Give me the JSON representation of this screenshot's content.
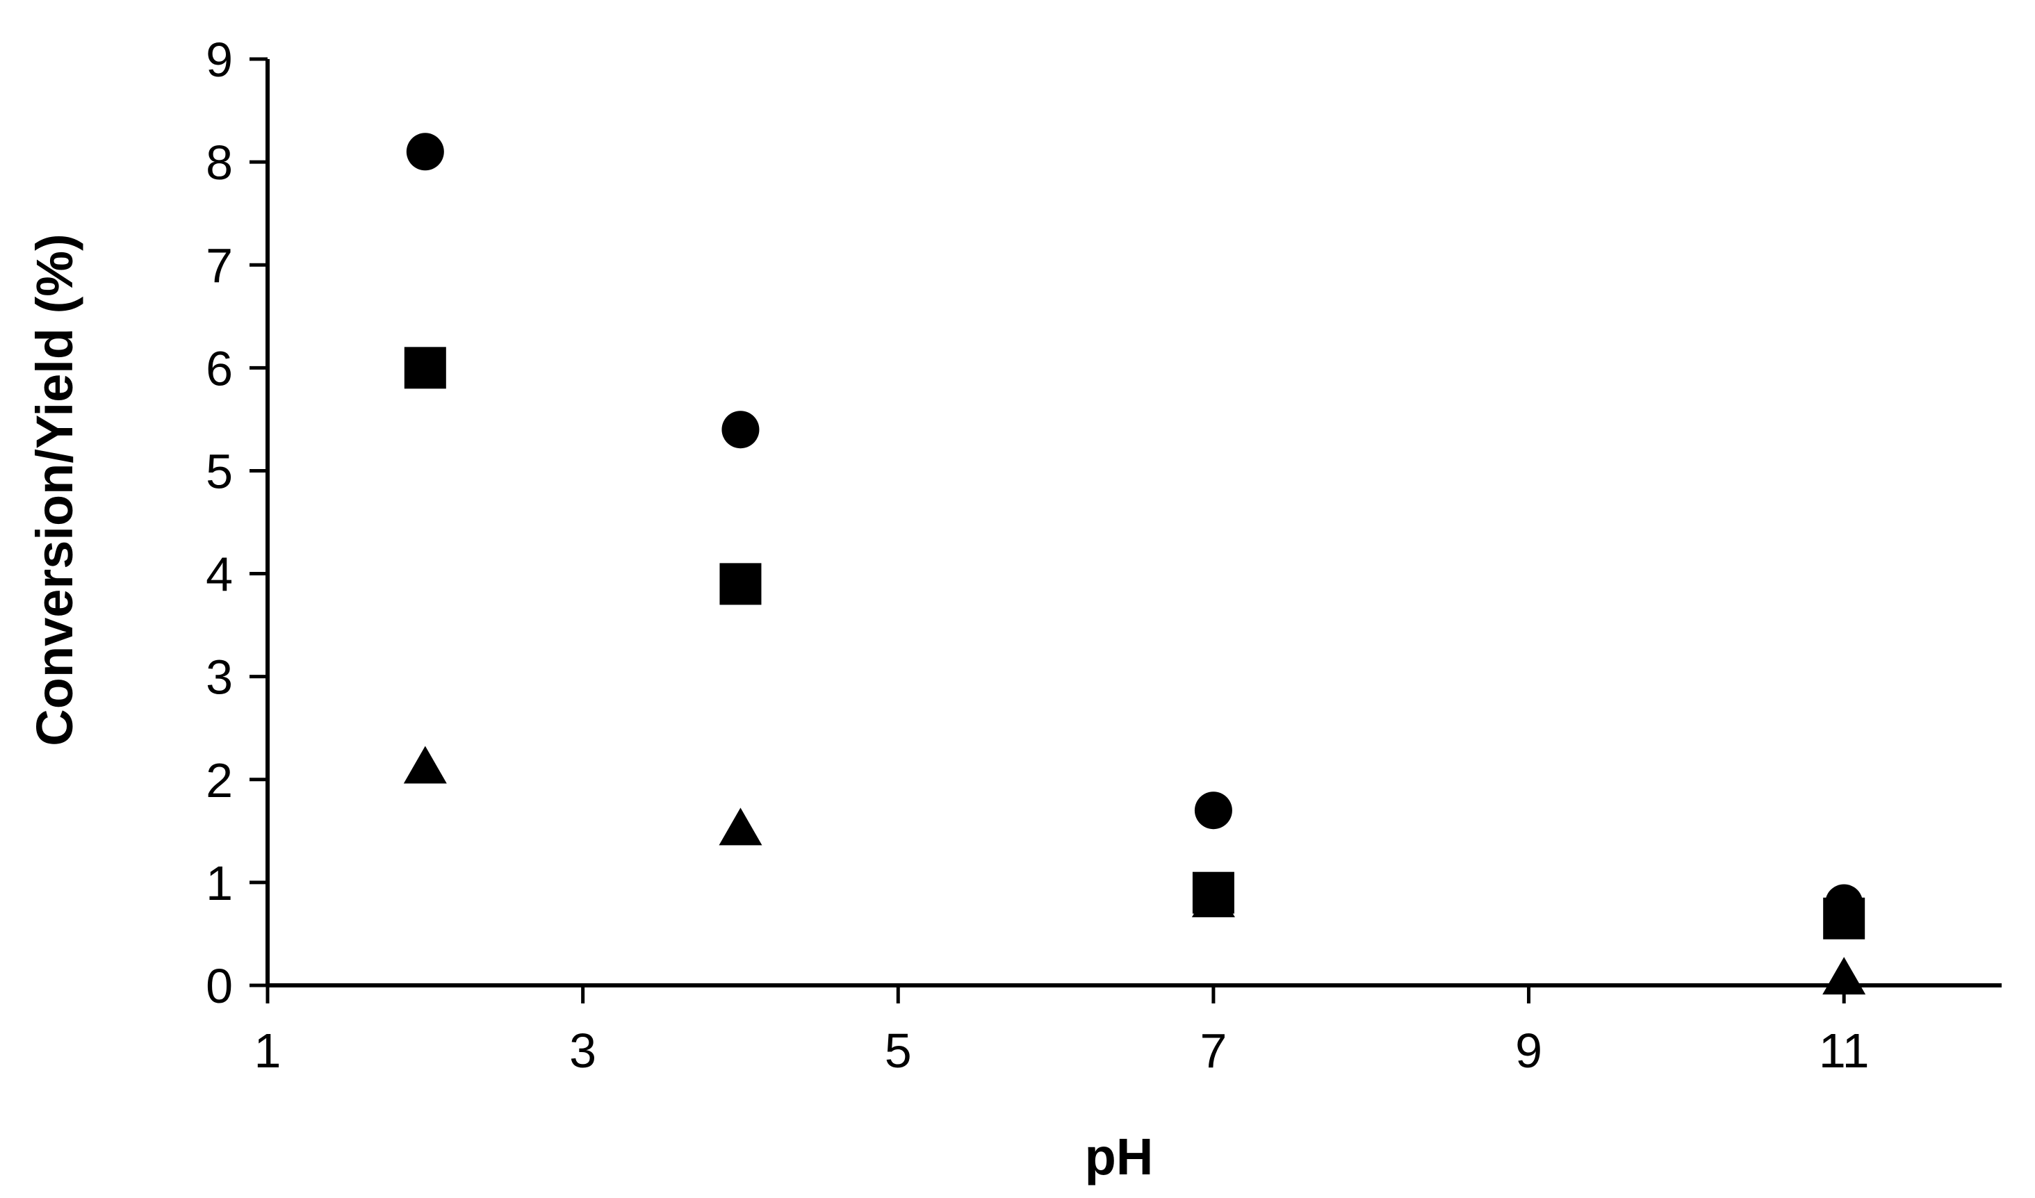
{
  "chart_data": {
    "type": "scatter",
    "title": "",
    "xlabel": "pH",
    "ylabel": "Conversion/Yield (%)",
    "xlim": [
      1,
      12
    ],
    "ylim": [
      0,
      9
    ],
    "x_ticks": [
      "1",
      "3",
      "5",
      "7",
      "9",
      "11"
    ],
    "y_ticks": [
      "0",
      "1",
      "2",
      "3",
      "4",
      "5",
      "6",
      "7",
      "8",
      "9"
    ],
    "grid": false,
    "legend": "none",
    "series": [
      {
        "marker": "circle",
        "color": "#000000",
        "x": [
          2,
          4,
          7,
          11
        ],
        "y": [
          8.1,
          5.4,
          1.7,
          0.8
        ]
      },
      {
        "marker": "square",
        "color": "#000000",
        "x": [
          2,
          4,
          7,
          11
        ],
        "y": [
          6.0,
          3.9,
          0.9,
          0.65
        ]
      },
      {
        "marker": "triangle",
        "color": "#000000",
        "x": [
          2,
          4,
          7,
          11
        ],
        "y": [
          2.1,
          1.5,
          0.8,
          0.05
        ]
      }
    ]
  }
}
